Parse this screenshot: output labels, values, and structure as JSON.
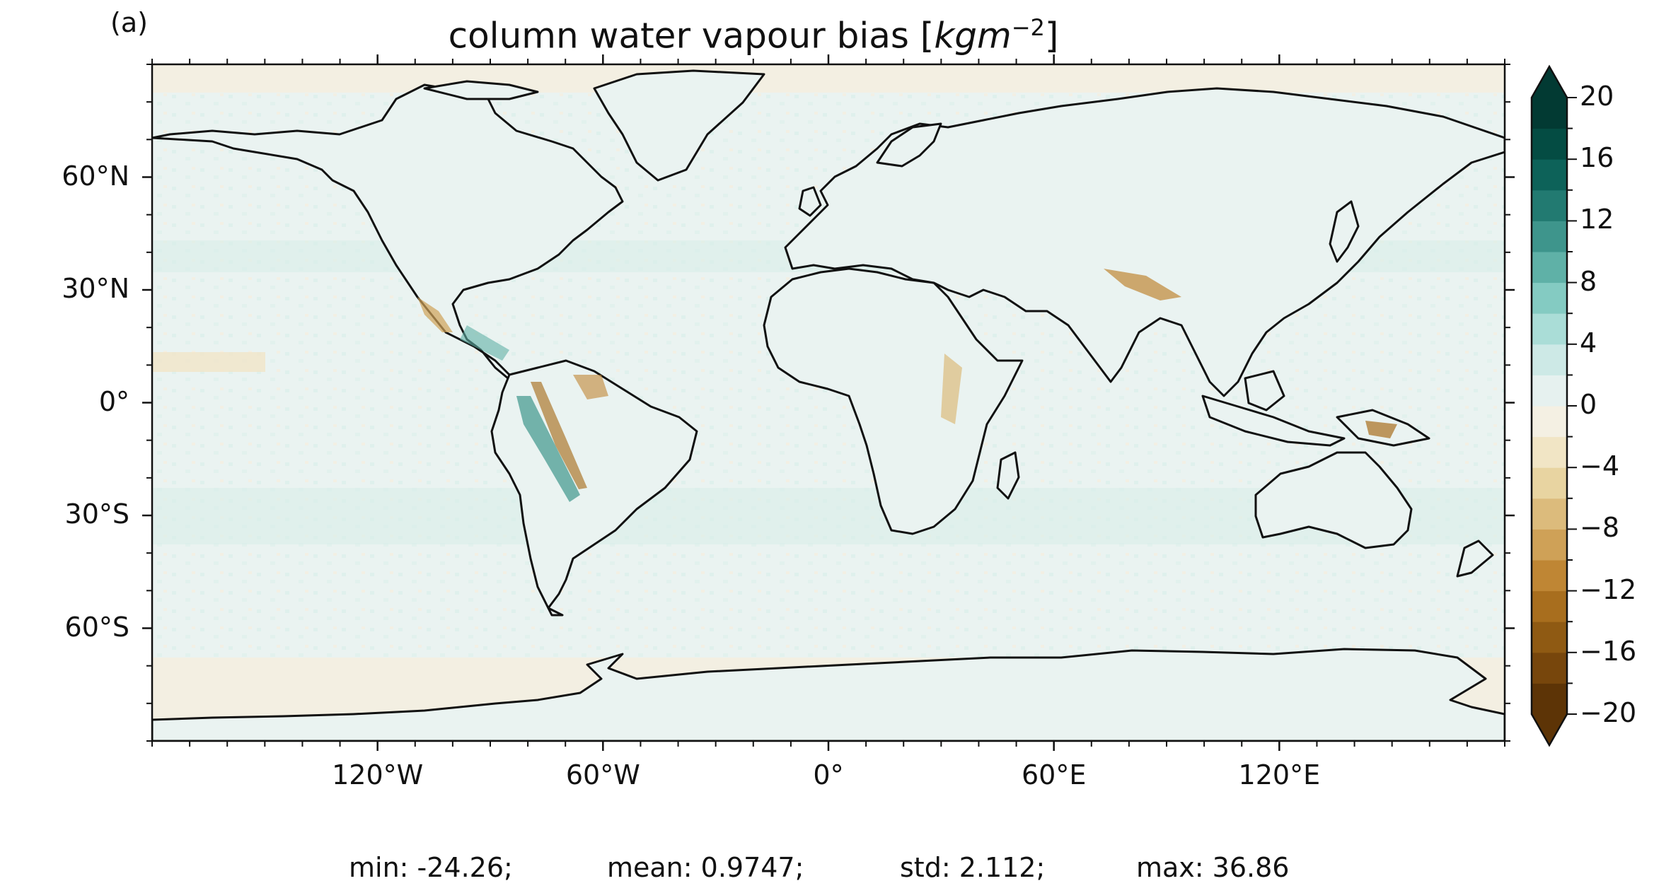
{
  "panel_label": "(a)",
  "title": {
    "text": "column water vapour bias [",
    "unit_base": "kgm",
    "unit_exp": "−2",
    "close": "]"
  },
  "axes": {
    "lat_ticks": [
      {
        "value": 60,
        "label": "60°N"
      },
      {
        "value": 30,
        "label": "30°N"
      },
      {
        "value": 0,
        "label": "0°"
      },
      {
        "value": -30,
        "label": "30°S"
      },
      {
        "value": -60,
        "label": "60°S"
      }
    ],
    "lon_ticks": [
      {
        "value": -120,
        "label": "120°W"
      },
      {
        "value": -60,
        "label": "60°W"
      },
      {
        "value": 0,
        "label": "0°"
      },
      {
        "value": 60,
        "label": "60°E"
      },
      {
        "value": 120,
        "label": "120°E"
      }
    ],
    "lon_range": [
      -180,
      180
    ],
    "lat_range": [
      -90,
      90
    ],
    "projection": "PlateCarree"
  },
  "colorbar": {
    "ticks": [
      {
        "value": 20,
        "label": "20"
      },
      {
        "value": 16,
        "label": "16"
      },
      {
        "value": 12,
        "label": "12"
      },
      {
        "value": 8,
        "label": "8"
      },
      {
        "value": 4,
        "label": "4"
      },
      {
        "value": 0,
        "label": "0"
      },
      {
        "value": -4,
        "label": "−4"
      },
      {
        "value": -8,
        "label": "−8"
      },
      {
        "value": -12,
        "label": "−12"
      },
      {
        "value": -16,
        "label": "−16"
      },
      {
        "value": -20,
        "label": "−20"
      }
    ],
    "range": [
      -20,
      20
    ],
    "extend": "both",
    "colormap": "BrBG",
    "colors": [
      "#5d3406",
      "#77460c",
      "#8f5a13",
      "#a86e1e",
      "#bf8634",
      "#cfa157",
      "#dcbb7c",
      "#e8d4a1",
      "#f1e5c5",
      "#f4f0e3",
      "#e6f1ef",
      "#cde9e6",
      "#aaddd7",
      "#84cbc2",
      "#5fb1a7",
      "#3e958c",
      "#227a71",
      "#0d6259",
      "#044c43",
      "#023a33"
    ]
  },
  "stats": {
    "min": "min: -24.26;",
    "mean": "mean: 0.9747;",
    "std": "std: 2.112;",
    "max": "max: 36.86"
  }
}
